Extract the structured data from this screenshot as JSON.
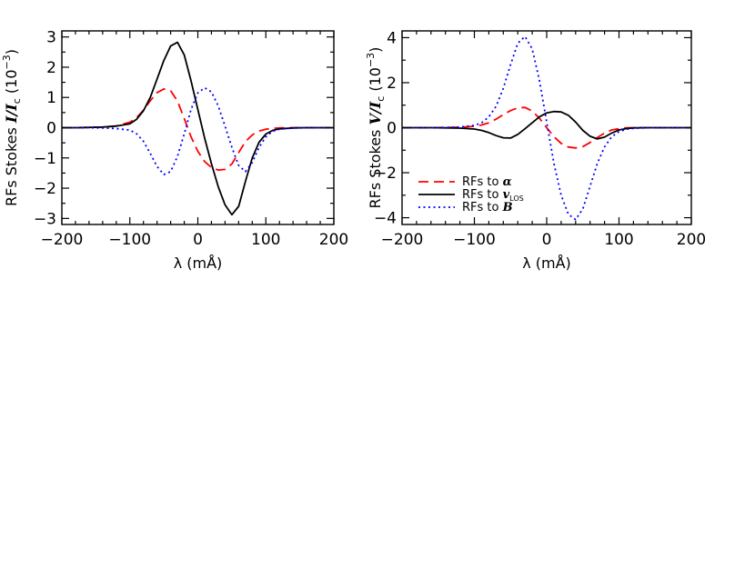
{
  "chart_data": [
    {
      "type": "line",
      "xlabel": "λ (mÅ)",
      "ylabel_prefix": "RFs Stokes ",
      "ylabel_var": "I/I",
      "ylabel_sub": "c",
      "ylabel_unit": "(10",
      "ylabel_exp": "−3",
      "ylabel_close": ")",
      "xlim": [
        -200,
        200
      ],
      "ylim": [
        -3.2,
        3.2
      ],
      "xticks": [
        -200,
        -100,
        0,
        100,
        200
      ],
      "xtick_labels": [
        "−200",
        "−100",
        "0",
        "100",
        "200"
      ],
      "yticks": [
        -3,
        -2,
        -1,
        0,
        1,
        2,
        3
      ],
      "ytick_labels": [
        "−3",
        "−2",
        "−1",
        "0",
        "1",
        "2",
        "3"
      ],
      "x": [
        -200,
        -180,
        -160,
        -140,
        -120,
        -100,
        -90,
        -80,
        -70,
        -60,
        -50,
        -40,
        -30,
        -20,
        -10,
        0,
        10,
        20,
        30,
        40,
        50,
        60,
        70,
        80,
        90,
        100,
        110,
        120,
        140,
        160,
        180,
        200
      ],
      "series": [
        {
          "key": "alpha",
          "color": "#ff0000",
          "dash": "dashed",
          "values": [
            0,
            0,
            0.01,
            0.02,
            0.06,
            0.18,
            0.33,
            0.58,
            0.89,
            1.16,
            1.28,
            1.22,
            0.88,
            0.3,
            -0.3,
            -0.78,
            -1.12,
            -1.32,
            -1.4,
            -1.38,
            -1.2,
            -0.82,
            -0.46,
            -0.24,
            -0.11,
            -0.05,
            -0.02,
            -0.01,
            0,
            0,
            0,
            0
          ]
        },
        {
          "key": "vlos",
          "color": "#000000",
          "dash": "solid",
          "values": [
            0,
            0,
            0.01,
            0.02,
            0.05,
            0.13,
            0.28,
            0.56,
            1.0,
            1.6,
            2.22,
            2.7,
            2.82,
            2.4,
            1.55,
            0.6,
            -0.35,
            -1.2,
            -1.95,
            -2.55,
            -2.88,
            -2.6,
            -1.78,
            -1.0,
            -0.48,
            -0.21,
            -0.09,
            -0.04,
            -0.01,
            0,
            0,
            0
          ]
        },
        {
          "key": "b",
          "color": "#0000ff",
          "dash": "dotted",
          "values": [
            0,
            0,
            0,
            -0.01,
            -0.03,
            -0.08,
            -0.2,
            -0.45,
            -0.85,
            -1.28,
            -1.55,
            -1.45,
            -0.95,
            -0.2,
            0.6,
            1.15,
            1.32,
            1.18,
            0.72,
            0.05,
            -0.65,
            -1.25,
            -1.45,
            -1.15,
            -0.65,
            -0.3,
            -0.12,
            -0.05,
            -0.01,
            0,
            0,
            0
          ]
        }
      ]
    },
    {
      "type": "line",
      "xlabel": "λ (mÅ)",
      "ylabel_prefix": "RFs Stokes ",
      "ylabel_var": "V/I",
      "ylabel_sub": "c",
      "ylabel_unit": "(10",
      "ylabel_exp": "−3",
      "ylabel_close": ")",
      "xlim": [
        -200,
        200
      ],
      "ylim": [
        -4.3,
        4.3
      ],
      "xticks": [
        -200,
        -100,
        0,
        100,
        200
      ],
      "xtick_labels": [
        "−200",
        "−100",
        "0",
        "100",
        "200"
      ],
      "yticks": [
        -4,
        -2,
        0,
        2,
        4
      ],
      "ytick_labels": [
        "−4",
        "−2",
        "0",
        "2",
        "4"
      ],
      "x": [
        -200,
        -180,
        -160,
        -140,
        -120,
        -100,
        -90,
        -80,
        -70,
        -60,
        -50,
        -40,
        -30,
        -20,
        -10,
        0,
        10,
        20,
        30,
        40,
        50,
        60,
        70,
        80,
        90,
        100,
        110,
        120,
        140,
        160,
        180,
        200
      ],
      "series": [
        {
          "key": "alpha",
          "color": "#ff0000",
          "dash": "dashed",
          "values": [
            0,
            0,
            0,
            0.01,
            0.02,
            0.06,
            0.12,
            0.22,
            0.38,
            0.58,
            0.76,
            0.88,
            0.9,
            0.74,
            0.42,
            0.0,
            -0.4,
            -0.7,
            -0.86,
            -0.9,
            -0.84,
            -0.66,
            -0.44,
            -0.24,
            -0.1,
            -0.04,
            -0.01,
            0,
            0,
            0,
            0,
            0
          ]
        },
        {
          "key": "vlos",
          "color": "#000000",
          "dash": "solid",
          "values": [
            0,
            0,
            0,
            -0.01,
            -0.02,
            -0.06,
            -0.12,
            -0.22,
            -0.35,
            -0.45,
            -0.46,
            -0.3,
            -0.05,
            0.22,
            0.48,
            0.66,
            0.72,
            0.7,
            0.55,
            0.25,
            -0.12,
            -0.38,
            -0.5,
            -0.42,
            -0.24,
            -0.1,
            -0.04,
            -0.01,
            0,
            0,
            0,
            0
          ]
        },
        {
          "key": "b",
          "color": "#0000ff",
          "dash": "dotted",
          "values": [
            0,
            0,
            0,
            0.01,
            0.03,
            0.1,
            0.22,
            0.48,
            0.95,
            1.75,
            2.8,
            3.75,
            4.05,
            3.5,
            2.1,
            0.25,
            -1.6,
            -3.0,
            -3.85,
            -4.08,
            -3.6,
            -2.6,
            -1.6,
            -0.85,
            -0.4,
            -0.18,
            -0.07,
            -0.03,
            0,
            0,
            0,
            0
          ]
        }
      ]
    }
  ],
  "legend": {
    "items": [
      {
        "key": "alpha",
        "text": "RFs to ",
        "var": "α",
        "sub": ""
      },
      {
        "key": "vlos",
        "text": "RFs to ",
        "var": "v",
        "sub": "LOS"
      },
      {
        "key": "b",
        "text": "RFs to ",
        "var": "B",
        "sub": ""
      }
    ]
  }
}
